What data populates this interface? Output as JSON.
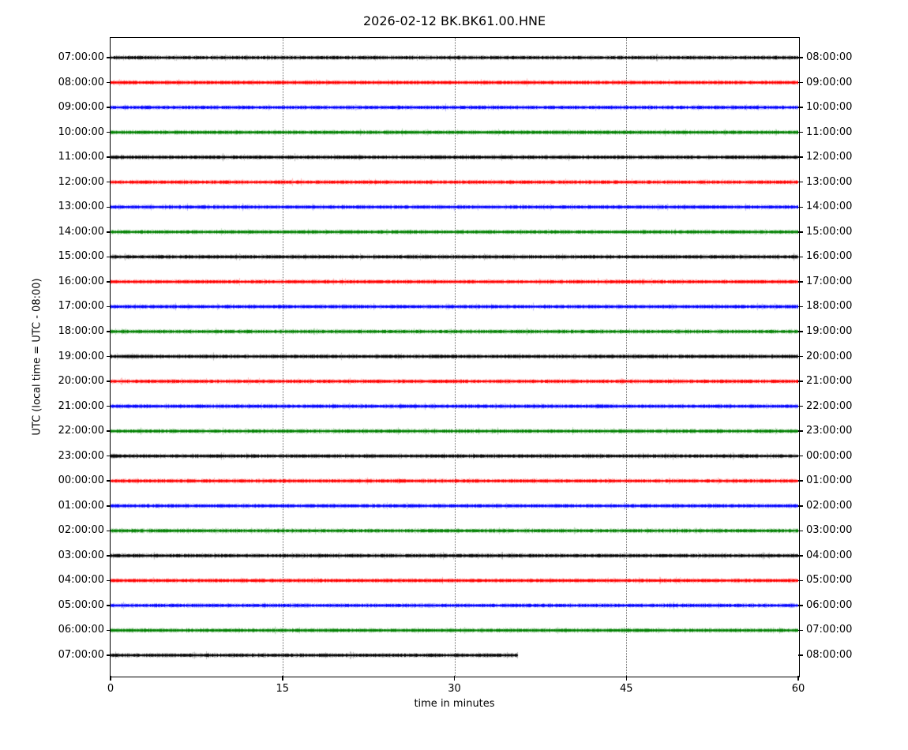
{
  "title": "2026-02-12 BK.BK61.00.HNE",
  "chart_data": {
    "type": "line",
    "variant": "seismogram-dayplot",
    "date": "2026-02-12",
    "station_id": "BK.BK61.00.HNE",
    "xlabel": "time in minutes",
    "ylabel": "UTC (local time = UTC - 08:00)",
    "xlim": [
      0,
      60
    ],
    "x_ticks": [
      0,
      15,
      30,
      45,
      60
    ],
    "grid_minutes": [
      15,
      30,
      45
    ],
    "grid_style": "dotted",
    "legend": "none",
    "color_cycle": [
      "#000000",
      "#ff0000",
      "#0000ff",
      "#008000"
    ],
    "waveform_description": "flat low-amplitude background noise on every trace, no visible events",
    "minutes_per_line": 60,
    "traces": [
      {
        "left_label": "07:00:00",
        "right_label": "08:00:00",
        "color": "#000000",
        "start_min": 0,
        "end_min": 60
      },
      {
        "left_label": "08:00:00",
        "right_label": "09:00:00",
        "color": "#ff0000",
        "start_min": 0,
        "end_min": 60
      },
      {
        "left_label": "09:00:00",
        "right_label": "10:00:00",
        "color": "#0000ff",
        "start_min": 0,
        "end_min": 60
      },
      {
        "left_label": "10:00:00",
        "right_label": "11:00:00",
        "color": "#008000",
        "start_min": 0,
        "end_min": 60
      },
      {
        "left_label": "11:00:00",
        "right_label": "12:00:00",
        "color": "#000000",
        "start_min": 0,
        "end_min": 60
      },
      {
        "left_label": "12:00:00",
        "right_label": "13:00:00",
        "color": "#ff0000",
        "start_min": 0,
        "end_min": 60
      },
      {
        "left_label": "13:00:00",
        "right_label": "14:00:00",
        "color": "#0000ff",
        "start_min": 0,
        "end_min": 60
      },
      {
        "left_label": "14:00:00",
        "right_label": "15:00:00",
        "color": "#008000",
        "start_min": 0,
        "end_min": 60
      },
      {
        "left_label": "15:00:00",
        "right_label": "16:00:00",
        "color": "#000000",
        "start_min": 0,
        "end_min": 60
      },
      {
        "left_label": "16:00:00",
        "right_label": "17:00:00",
        "color": "#ff0000",
        "start_min": 0,
        "end_min": 60
      },
      {
        "left_label": "17:00:00",
        "right_label": "18:00:00",
        "color": "#0000ff",
        "start_min": 0,
        "end_min": 60
      },
      {
        "left_label": "18:00:00",
        "right_label": "19:00:00",
        "color": "#008000",
        "start_min": 0,
        "end_min": 60
      },
      {
        "left_label": "19:00:00",
        "right_label": "20:00:00",
        "color": "#000000",
        "start_min": 0,
        "end_min": 60
      },
      {
        "left_label": "20:00:00",
        "right_label": "21:00:00",
        "color": "#ff0000",
        "start_min": 0,
        "end_min": 60
      },
      {
        "left_label": "21:00:00",
        "right_label": "22:00:00",
        "color": "#0000ff",
        "start_min": 0,
        "end_min": 60
      },
      {
        "left_label": "22:00:00",
        "right_label": "23:00:00",
        "color": "#008000",
        "start_min": 0,
        "end_min": 60
      },
      {
        "left_label": "23:00:00",
        "right_label": "00:00:00",
        "color": "#000000",
        "start_min": 0,
        "end_min": 60
      },
      {
        "left_label": "00:00:00",
        "right_label": "01:00:00",
        "color": "#ff0000",
        "start_min": 0,
        "end_min": 60
      },
      {
        "left_label": "01:00:00",
        "right_label": "02:00:00",
        "color": "#0000ff",
        "start_min": 0,
        "end_min": 60
      },
      {
        "left_label": "02:00:00",
        "right_label": "03:00:00",
        "color": "#008000",
        "start_min": 0,
        "end_min": 60
      },
      {
        "left_label": "03:00:00",
        "right_label": "04:00:00",
        "color": "#000000",
        "start_min": 0,
        "end_min": 60
      },
      {
        "left_label": "04:00:00",
        "right_label": "05:00:00",
        "color": "#ff0000",
        "start_min": 0,
        "end_min": 60
      },
      {
        "left_label": "05:00:00",
        "right_label": "06:00:00",
        "color": "#0000ff",
        "start_min": 0,
        "end_min": 60
      },
      {
        "left_label": "06:00:00",
        "right_label": "07:00:00",
        "color": "#008000",
        "start_min": 0,
        "end_min": 60
      },
      {
        "left_label": "07:00:00",
        "right_label": "08:00:00",
        "color": "#000000",
        "start_min": 0,
        "end_min": 35.5
      }
    ]
  }
}
